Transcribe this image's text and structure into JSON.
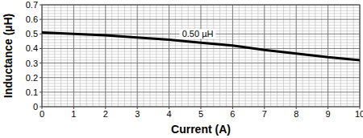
{
  "chart_data": {
    "type": "line",
    "x_label": "Current (A)",
    "y_label": "Inductance (µH)",
    "x": [
      0,
      1,
      2,
      3,
      4,
      5,
      6,
      7,
      8,
      9,
      10
    ],
    "values": [
      0.51,
      0.5,
      0.49,
      0.475,
      0.46,
      0.44,
      0.42,
      0.39,
      0.365,
      0.34,
      0.32
    ],
    "color": "#000000",
    "xlim": [
      0,
      10
    ],
    "xticks": [
      0,
      1,
      2,
      3,
      4,
      5,
      6,
      7,
      8,
      9,
      10
    ],
    "ylim": [
      0,
      0.7
    ],
    "yticks": [
      0,
      0.1,
      0.2,
      0.3,
      0.4,
      0.5,
      0.6,
      0.7
    ],
    "grid": true,
    "annotations": [
      {
        "text": "0.50 µH",
        "x": 4.9,
        "y": 0.5
      }
    ]
  }
}
